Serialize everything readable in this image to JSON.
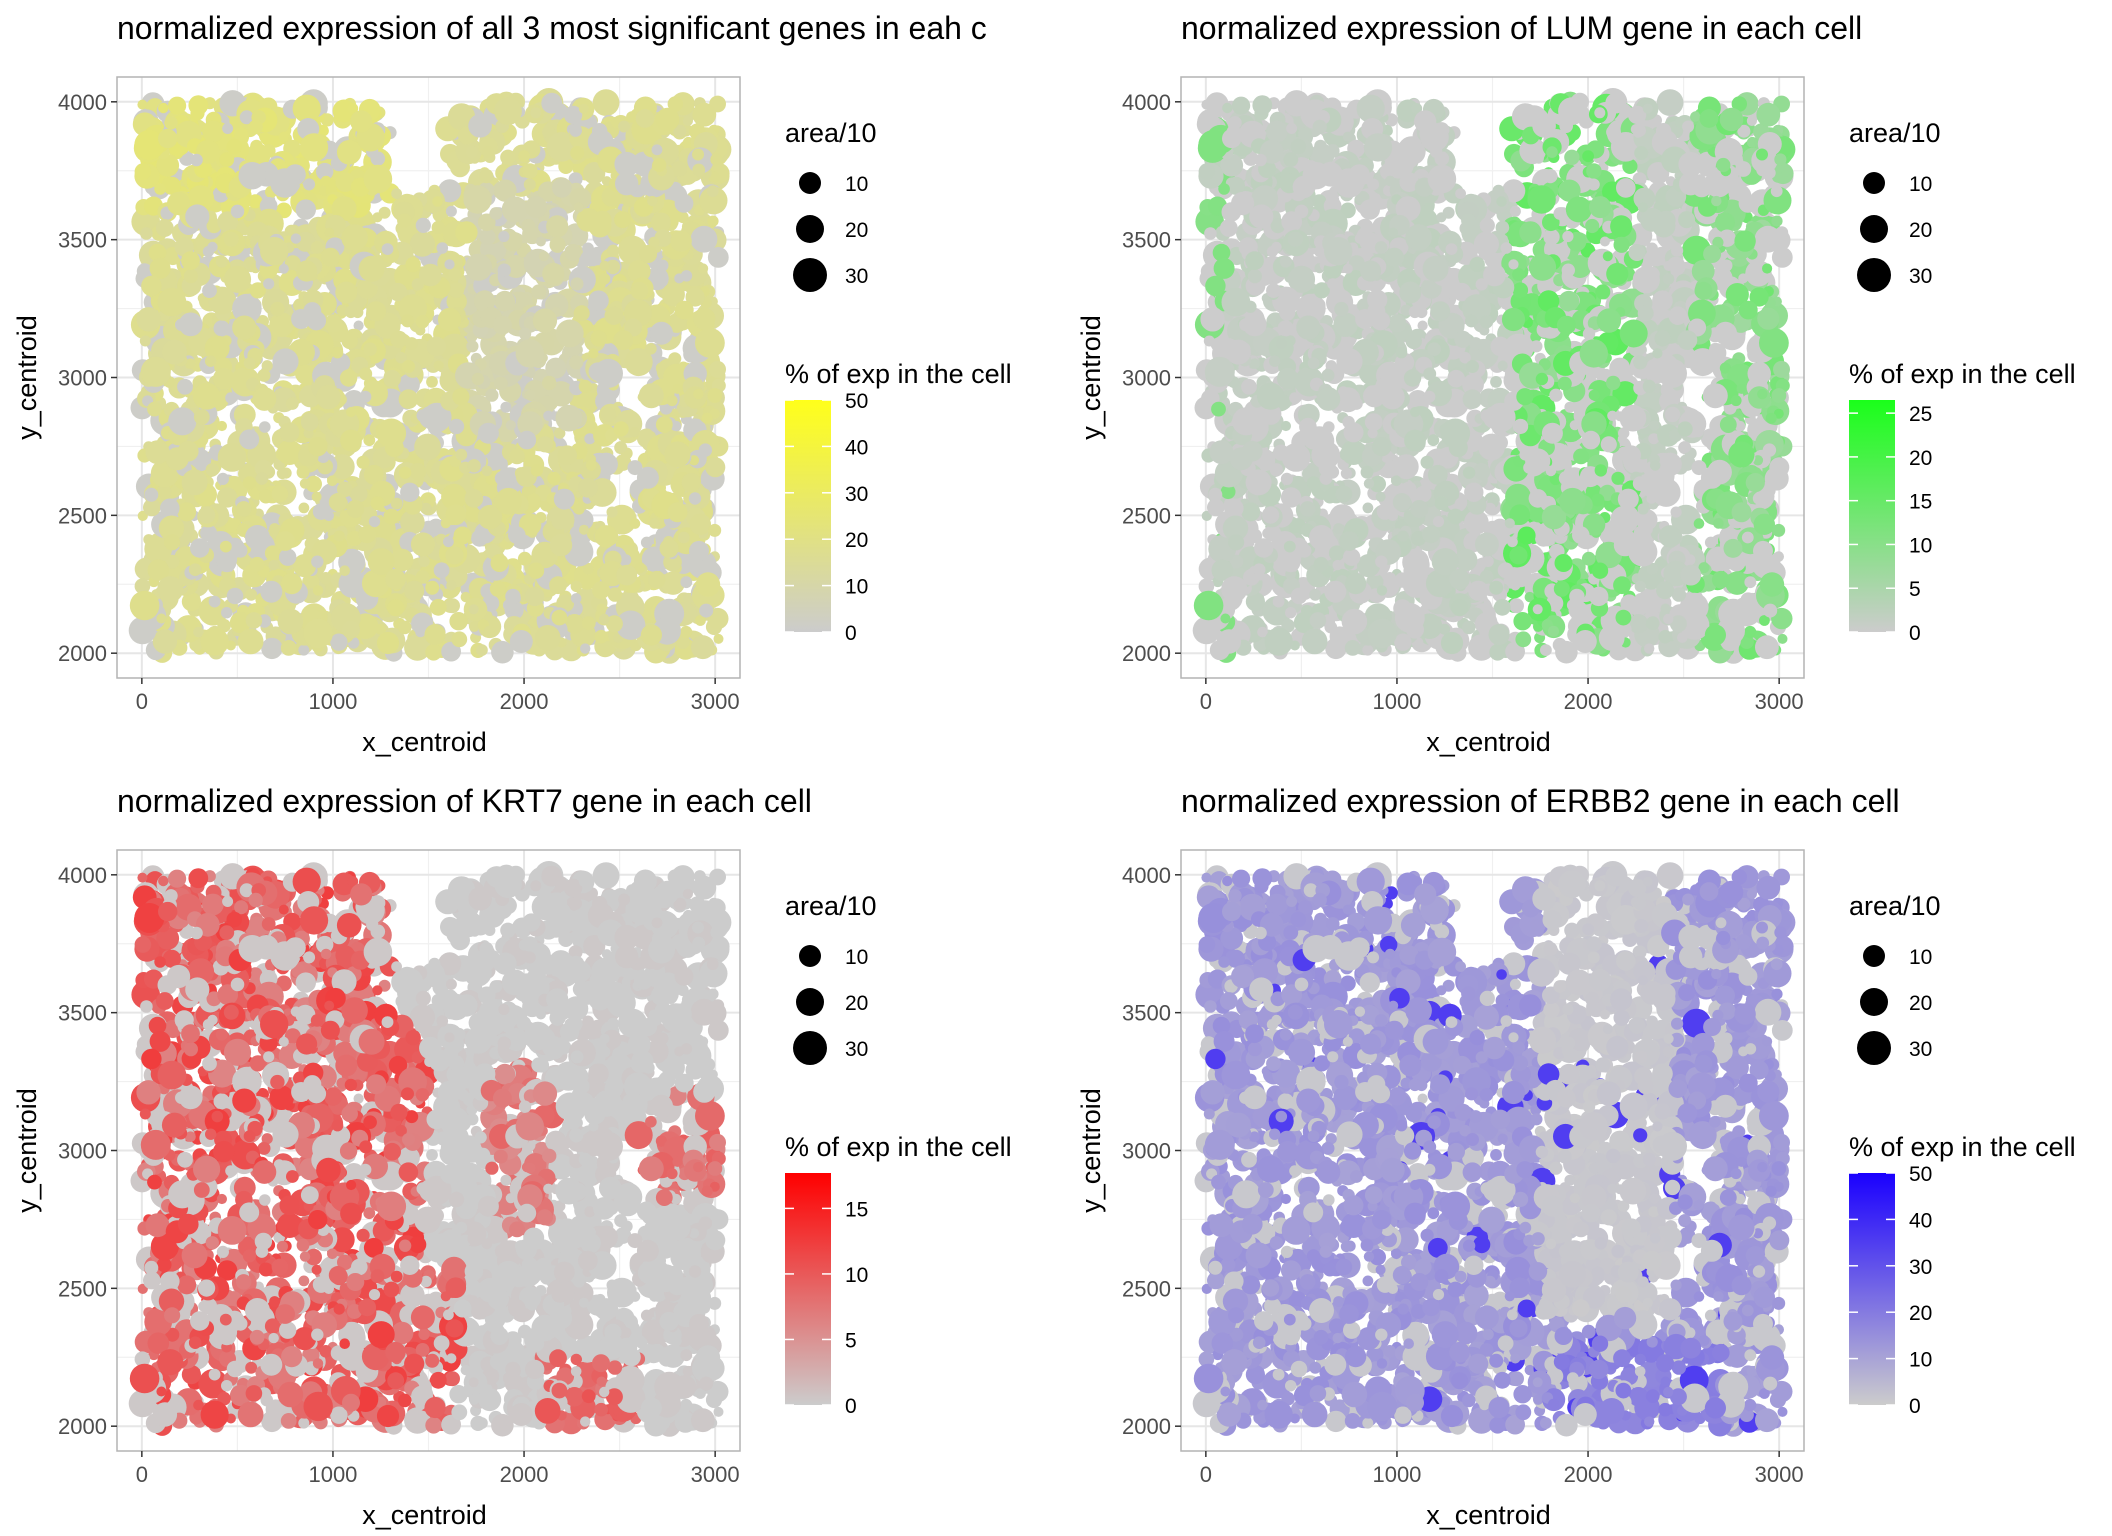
{
  "chart_data": [
    {
      "type": "scatter",
      "title": "normalized expression of all 3 most significant genes in eah c",
      "xlabel": "x_centroid",
      "ylabel": "y_centroid",
      "xlim": [
        -130,
        3130
      ],
      "ylim": [
        1910,
        4090
      ],
      "xticks": [
        0,
        1000,
        2000,
        3000
      ],
      "yticks": [
        2000,
        2500,
        3000,
        3500,
        4000
      ],
      "grid": true,
      "low_color": "#cccccc",
      "high_color": "#ffff1a",
      "size_legend": {
        "title": "area/10",
        "breaks": [
          10,
          20,
          30
        ]
      },
      "color_legend": {
        "title": "% of exp in the cell",
        "min": 0,
        "max": 50,
        "breaks": [
          0,
          10,
          20,
          30,
          40,
          50
        ]
      }
    },
    {
      "type": "scatter",
      "title": "normalized expression of LUM gene in each cell",
      "xlabel": "x_centroid",
      "ylabel": "y_centroid",
      "xlim": [
        -130,
        3130
      ],
      "ylim": [
        1910,
        4090
      ],
      "xticks": [
        0,
        1000,
        2000,
        3000
      ],
      "yticks": [
        2000,
        2500,
        3000,
        3500,
        4000
      ],
      "grid": true,
      "low_color": "#cccccc",
      "high_color": "#1aff1a",
      "size_legend": {
        "title": "area/10",
        "breaks": [
          10,
          20,
          30
        ]
      },
      "color_legend": {
        "title": "% of exp in the cell",
        "min": 0,
        "max": 26.5,
        "breaks": [
          0,
          5,
          10,
          15,
          20,
          25
        ]
      }
    },
    {
      "type": "scatter",
      "title": "normalized expression of KRT7 gene in each cell",
      "xlabel": "x_centroid",
      "ylabel": "y_centroid",
      "xlim": [
        -130,
        3130
      ],
      "ylim": [
        1910,
        4090
      ],
      "xticks": [
        0,
        1000,
        2000,
        3000
      ],
      "yticks": [
        2000,
        2500,
        3000,
        3500,
        4000
      ],
      "grid": true,
      "low_color": "#cccccc",
      "high_color": "#ff0000",
      "size_legend": {
        "title": "area/10",
        "breaks": [
          10,
          20,
          30
        ]
      },
      "color_legend": {
        "title": "% of exp in the cell",
        "min": 0,
        "max": 17.7,
        "breaks": [
          0,
          5,
          10,
          15
        ]
      }
    },
    {
      "type": "scatter",
      "title": "normalized expression of ERBB2 gene in each cell",
      "xlabel": "x_centroid",
      "ylabel": "y_centroid",
      "xlim": [
        -130,
        3130
      ],
      "ylim": [
        1910,
        4090
      ],
      "xticks": [
        0,
        1000,
        2000,
        3000
      ],
      "yticks": [
        2000,
        2500,
        3000,
        3500,
        4000
      ],
      "grid": true,
      "low_color": "#cccccc",
      "high_color": "#1a00ff",
      "size_legend": {
        "title": "area/10",
        "breaks": [
          10,
          20,
          30
        ]
      },
      "color_legend": {
        "title": "% of exp in the cell",
        "min": 0,
        "max": 50,
        "breaks": [
          0,
          10,
          20,
          30,
          40,
          50
        ]
      }
    }
  ]
}
